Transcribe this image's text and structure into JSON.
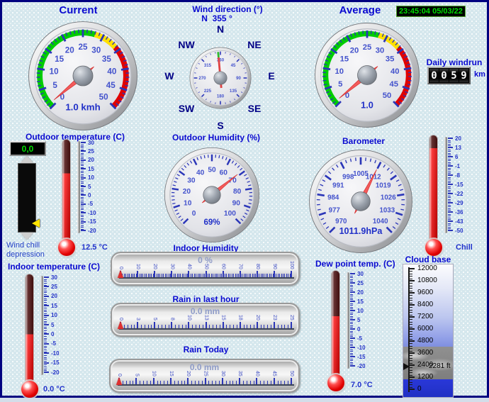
{
  "colors": {
    "title_blue": "#0a0ad0",
    "frame_navy": "#000080",
    "tick_blue": "#2b36b8",
    "needle_red": "#f35b5b",
    "zone_green": "#00cc00",
    "zone_yellow": "#ffe000",
    "zone_red": "#e00000",
    "lcd_green": "#00e000",
    "clock_green": "#00dd00"
  },
  "header": {
    "current_title": "Current",
    "average_title": "Average",
    "clock": "23:45:04 05/03/22"
  },
  "wind": {
    "direction_title": "Wind direction (°)",
    "direction_reading": "N  355 °",
    "current_gauge": {
      "min": 0,
      "max": 50,
      "start": -135,
      "sweep": 270,
      "labels": [
        0,
        5,
        10,
        15,
        20,
        25,
        30,
        35,
        40,
        45,
        50
      ],
      "minor_step": 1,
      "value": 1.0,
      "caption": "1.0 kmh",
      "label_size": 7.5,
      "zones": [
        {
          "from": 0,
          "to": 28,
          "color": "#00cc00"
        },
        {
          "from": 28,
          "to": 34,
          "color": "#ffe000"
        },
        {
          "from": 34,
          "to": 50,
          "color": "#e00000"
        }
      ]
    },
    "average_gauge": {
      "min": 0,
      "max": 50,
      "start": -135,
      "sweep": 270,
      "labels": [
        0,
        5,
        10,
        15,
        20,
        25,
        30,
        35,
        40,
        45,
        50
      ],
      "minor_step": 1,
      "value": 1.0,
      "caption": "1.0",
      "label_size": 7.5,
      "zones": [
        {
          "from": 0,
          "to": 28,
          "color": "#00cc00"
        },
        {
          "from": 28,
          "to": 34,
          "color": "#ffe000"
        },
        {
          "from": 34,
          "to": 50,
          "color": "#e00000"
        }
      ]
    },
    "compass": {
      "labels": [
        45,
        90,
        135,
        180,
        225,
        270,
        315,
        360
      ],
      "minor_step": 11.25,
      "value": 355,
      "label_size": 7,
      "cardinals": {
        "n": "N",
        "ne": "NE",
        "e": "E",
        "se": "SE",
        "s": "S",
        "sw": "SW",
        "w": "W",
        "nw": "NW"
      }
    }
  },
  "windrun": {
    "label": "Daily windrun",
    "digits": "0059",
    "unit": "km"
  },
  "outdoor_temperature": {
    "title": "Outdoor temperature (C)",
    "lcd_value": "0,0",
    "reading": "12.5 °C",
    "thermo": {
      "scale": [
        30,
        25,
        20,
        15,
        10,
        5,
        0,
        -5,
        -10,
        -15,
        -20
      ],
      "value": 12.5,
      "fill": 0.65
    }
  },
  "wind_chill": {
    "line1": "Wind chill",
    "line2": "depression"
  },
  "indoor_temperature": {
    "title": "Indoor temperature (C)",
    "reading": "0.0 °C",
    "thermo": {
      "scale": [
        30,
        25,
        20,
        15,
        10,
        5,
        0,
        -5,
        -10,
        -15,
        -20
      ],
      "value": 0.0,
      "fill": 0.4
    }
  },
  "outdoor_humidity": {
    "title": "Outdoor Humidity (%)",
    "gauge": {
      "min": 0,
      "max": 100,
      "start": -135,
      "sweep": 270,
      "labels": [
        0,
        10,
        20,
        30,
        40,
        50,
        60,
        70,
        80,
        90,
        100
      ],
      "minor_step": 2,
      "value": 69,
      "caption": "69%",
      "label_size": 7.5,
      "zones": []
    }
  },
  "barometer": {
    "title": "Barometer",
    "gauge": {
      "min": 970,
      "max": 1040,
      "start": -135,
      "sweep": 270,
      "labels": [
        970,
        977,
        984,
        991,
        998,
        1005,
        1012,
        1019,
        1026,
        1033,
        1040
      ],
      "minor_step": 1.75,
      "value": 1011.9,
      "caption": "1011.9hPa",
      "label_size": 6.6,
      "zones": []
    }
  },
  "chill_thermo": {
    "label": "Chill",
    "thermo": {
      "scale": [
        20,
        13,
        6,
        -1,
        -8,
        -15,
        -22,
        -29,
        -36,
        -43,
        -50
      ],
      "value": 12.5,
      "fill": 0.893
    }
  },
  "indoor_humidity": {
    "title": "Indoor Humidity",
    "bar": {
      "caption": "0 %",
      "labels": [
        0,
        10,
        20,
        30,
        40,
        50,
        60,
        70,
        80,
        90,
        100
      ],
      "minors_per_gap": 9,
      "value": 0
    }
  },
  "rain_last_hour": {
    "title": "Rain in last hour",
    "bar": {
      "caption": "0.0 mm",
      "labels": [
        0,
        3,
        5,
        8,
        10,
        13,
        15,
        18,
        20,
        23,
        25
      ],
      "minors_per_gap": 4,
      "value": 0
    }
  },
  "rain_today": {
    "title": "Rain Today",
    "bar": {
      "caption": "0.0 mm",
      "labels": [
        0,
        5,
        10,
        15,
        20,
        25,
        30,
        35,
        40,
        45,
        50
      ],
      "minors_per_gap": 4,
      "value": 0
    }
  },
  "dew_point": {
    "title": "Dew point temp. (C)",
    "reading": "7.0 °C",
    "thermo": {
      "scale": [
        30,
        25,
        20,
        15,
        10,
        5,
        0,
        -5,
        -10,
        -15,
        -20
      ],
      "value": 7.0,
      "fill": 0.54
    }
  },
  "cloud_base": {
    "title": "Cloud base",
    "labels": [
      12000,
      10800,
      9600,
      8400,
      7200,
      6000,
      4800,
      3600,
      2400,
      1200,
      0
    ],
    "top_ft": 12000,
    "pointer_ft": 2281,
    "pointer_label": "2281 ft"
  }
}
